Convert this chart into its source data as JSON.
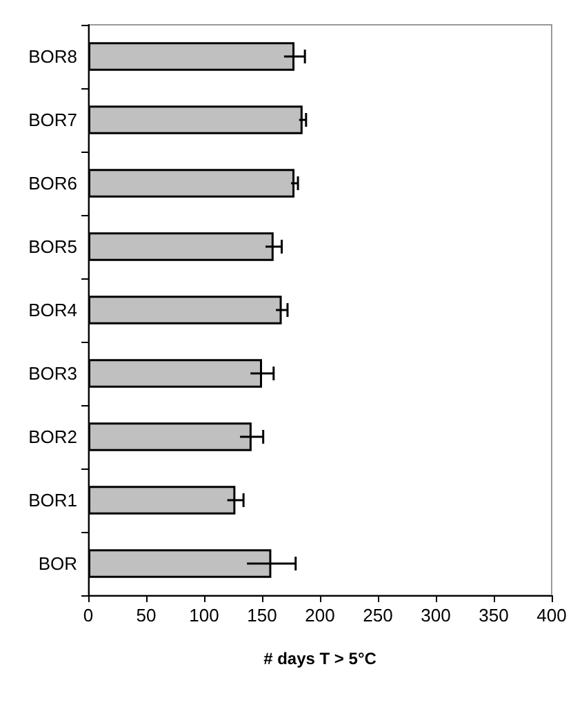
{
  "chart_data": {
    "type": "bar",
    "orientation": "horizontal",
    "xlabel": "# days T > 5°C",
    "categories": [
      "BOR8",
      "BOR7",
      "BOR6",
      "BOR5",
      "BOR4",
      "BOR3",
      "BOR2",
      "BOR1",
      "BOR"
    ],
    "values": [
      178,
      185,
      178,
      160,
      167,
      150,
      141,
      127,
      158
    ],
    "errors": [
      9,
      3,
      3,
      7,
      5,
      10,
      10,
      7,
      21
    ],
    "color": "#c0c0c0",
    "xlim": [
      0,
      400
    ],
    "xticks": [
      0,
      50,
      100,
      150,
      200,
      250,
      300,
      350,
      400
    ],
    "grid": false
  }
}
